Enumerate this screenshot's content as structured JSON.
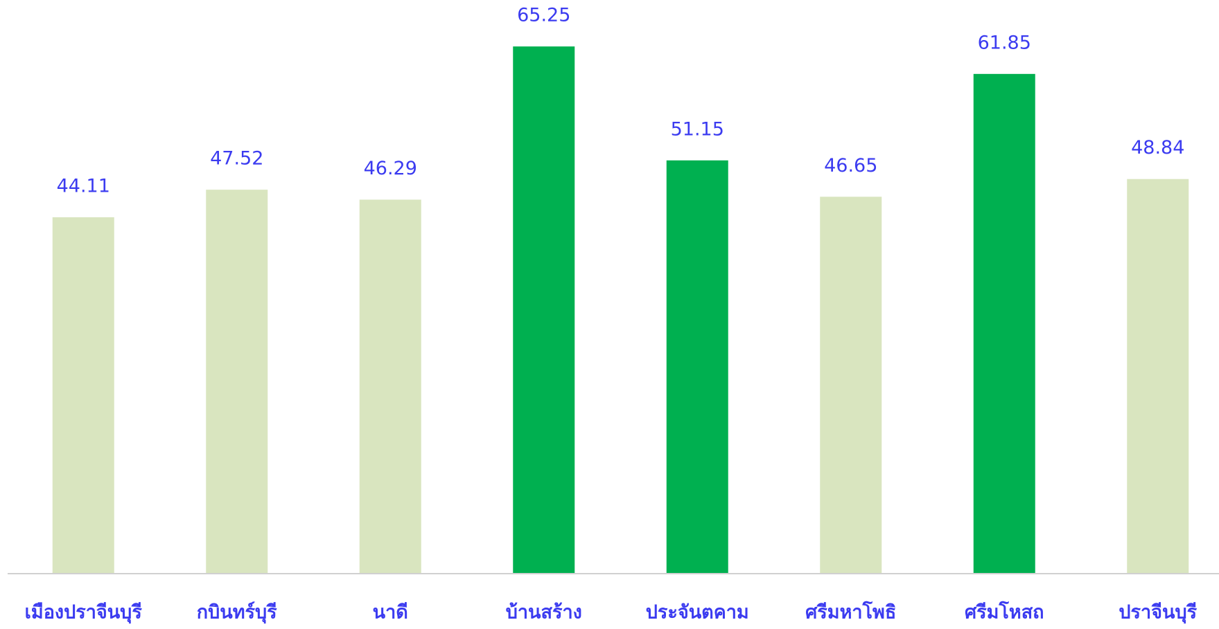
{
  "chart_data": {
    "type": "bar",
    "categories": [
      "เมืองปราจีนบุรี",
      "กบินทร์บุรี",
      "นาดี",
      "บ้านสร้าง",
      "ประจันตคาม",
      "ศรีมหาโพธิ",
      "ศรีมโหสถ",
      "ปราจีนบุรี"
    ],
    "values": [
      44.11,
      47.52,
      46.29,
      65.25,
      51.15,
      46.65,
      61.85,
      48.84
    ],
    "colors": [
      "#d9e5bf",
      "#d9e5bf",
      "#d9e5bf",
      "#00b050",
      "#00b050",
      "#d9e5bf",
      "#00b050",
      "#d9e5bf"
    ],
    "ylim": [
      0,
      71
    ]
  }
}
